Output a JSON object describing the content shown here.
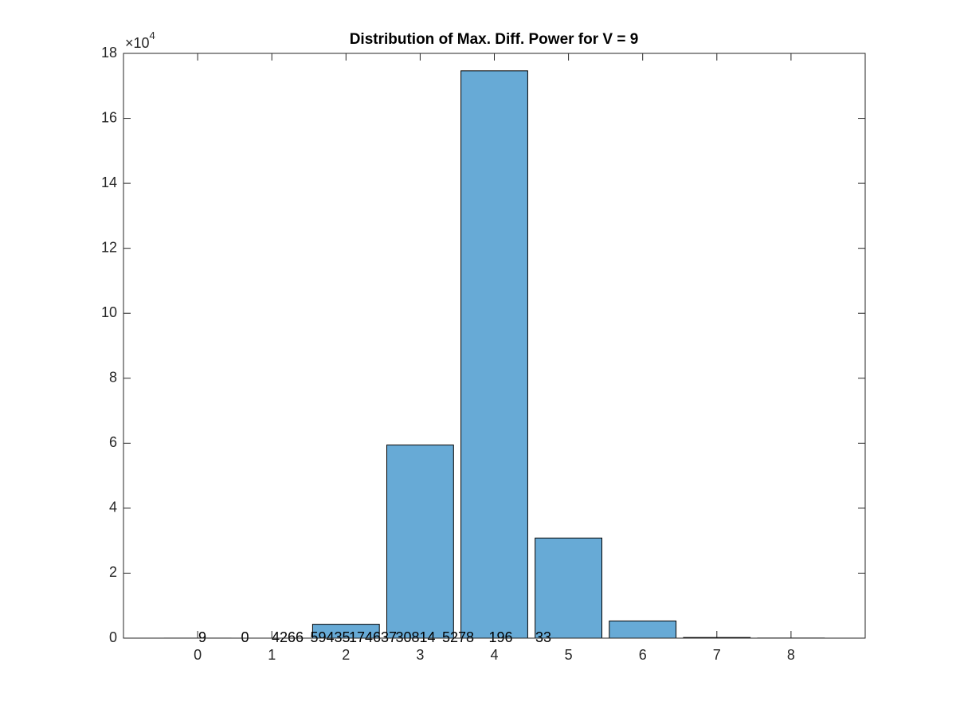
{
  "chart_data": {
    "type": "bar",
    "title": "Distribution of Max. Diff. Power for V = 9",
    "y_multiplier": {
      "base": "×10",
      "exponent": "4"
    },
    "x": [
      0,
      1,
      2,
      3,
      4,
      5,
      6,
      7,
      8
    ],
    "values": [
      9,
      0,
      4266,
      59435,
      174637,
      30814,
      5278,
      196,
      33
    ],
    "color": "#67aad6",
    "xlim": [
      -1,
      9
    ],
    "xticks": [
      0,
      1,
      2,
      3,
      4,
      5,
      6,
      7,
      8
    ],
    "ylim": [
      0,
      180000
    ],
    "yticks": [
      {
        "value": 0,
        "label": "0"
      },
      {
        "value": 20000,
        "label": "2"
      },
      {
        "value": 40000,
        "label": "4"
      },
      {
        "value": 60000,
        "label": "6"
      },
      {
        "value": 80000,
        "label": "8"
      },
      {
        "value": 100000,
        "label": "10"
      },
      {
        "value": 120000,
        "label": "12"
      },
      {
        "value": 140000,
        "label": "14"
      },
      {
        "value": 160000,
        "label": "16"
      },
      {
        "value": 180000,
        "label": "18"
      }
    ],
    "grid": false
  }
}
